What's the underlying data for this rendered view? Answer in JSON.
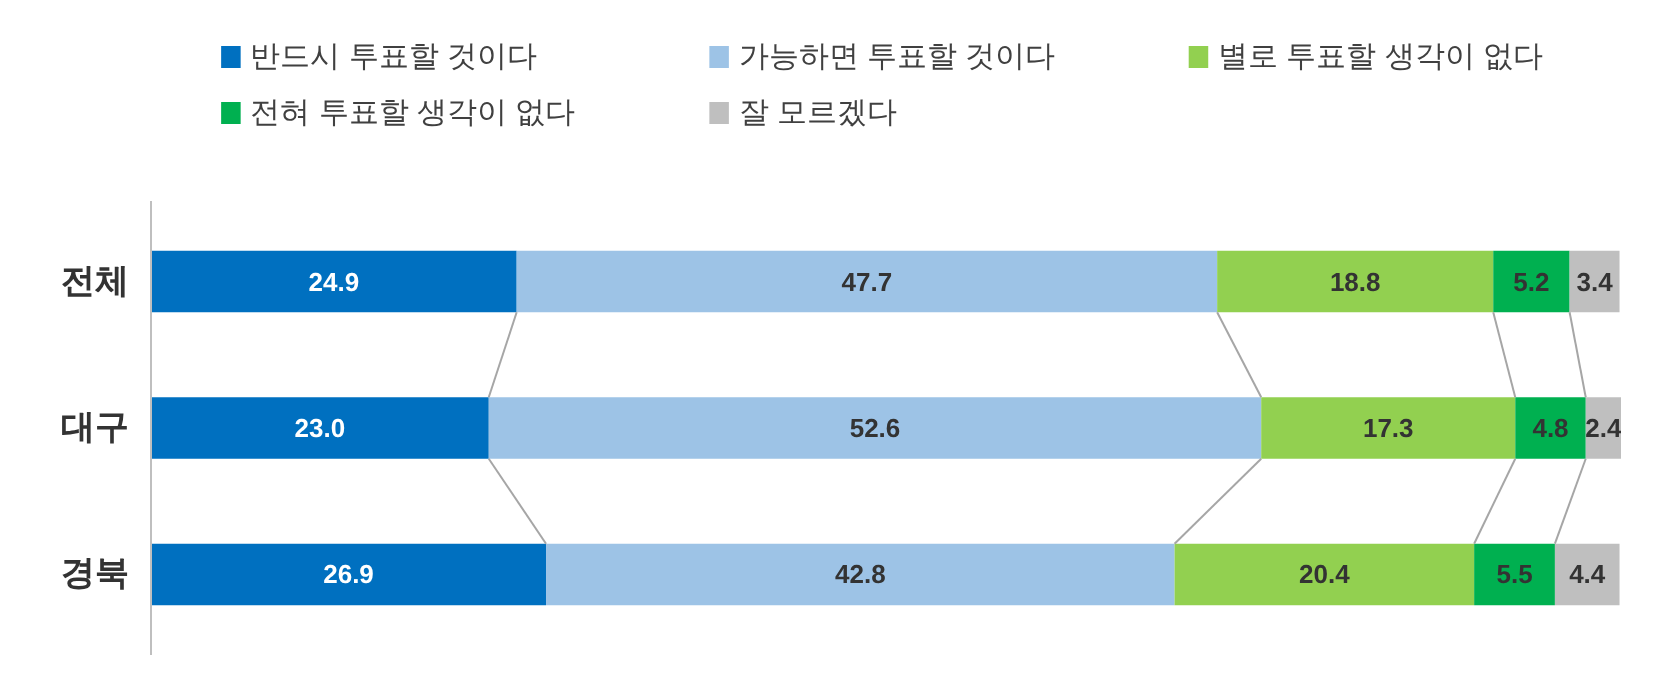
{
  "chart_data": {
    "type": "bar",
    "orientation": "horizontal",
    "stacked": true,
    "data_labels": true,
    "legend": "top",
    "grid": false,
    "categories": [
      "전체",
      "대구",
      "경북"
    ],
    "series": [
      {
        "name": "반드시 투표할 것이다",
        "color": "#0070c0",
        "values": [
          24.9,
          23.0,
          26.9
        ],
        "value_labels": [
          "24.9",
          "23.0",
          "26.9"
        ]
      },
      {
        "name": "가능하면 투표할 것이다",
        "color": "#9dc3e6",
        "values": [
          47.7,
          52.6,
          42.8
        ]
      },
      {
        "name": "별로 투표할 생각이 없다",
        "color": "#92d050",
        "values": [
          18.8,
          17.3,
          20.4
        ]
      },
      {
        "name": "전혀 투표할 생각이 없다",
        "color": "#00b050",
        "values": [
          5.2,
          4.8,
          5.5
        ]
      },
      {
        "name": "잘 모르겠다",
        "color": "#bfbfbf",
        "values": [
          3.4,
          2.4,
          4.4
        ]
      }
    ]
  }
}
